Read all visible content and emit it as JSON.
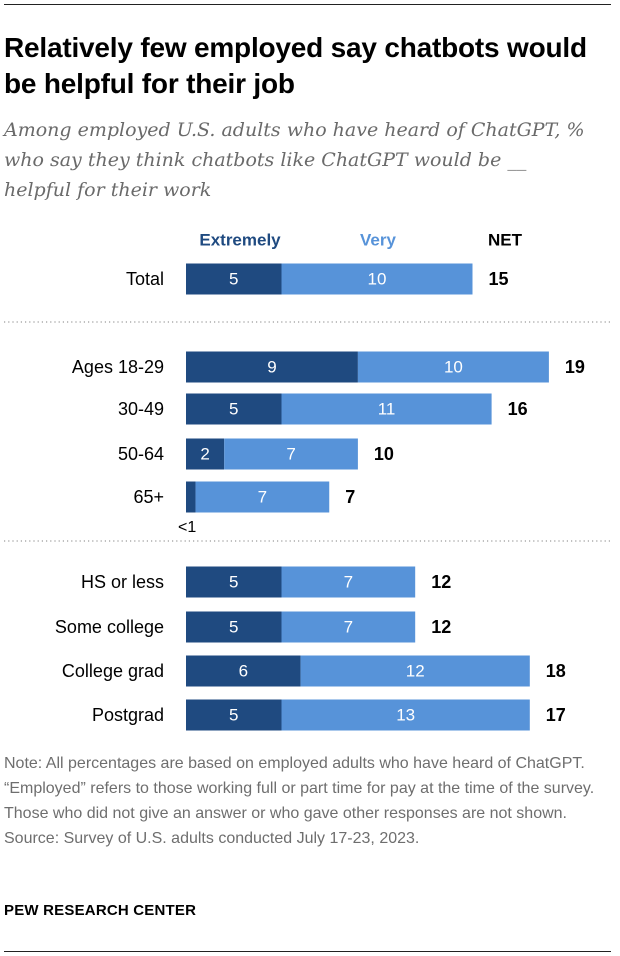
{
  "header": {
    "title": "Relatively few employed say chatbots would be helpful for their job",
    "subtitle": "Among employed U.S. adults who have heard of ChatGPT, % who say they think chatbots like ChatGPT would be __ helpful for their work"
  },
  "colors": {
    "extremely": "#1f4a80",
    "very": "#5793d9",
    "net": "#000000",
    "label": "#000000",
    "bar_text": "#ffffff",
    "divider": "#9a9a9a"
  },
  "chart_data": {
    "type": "bar",
    "orientation": "horizontal",
    "stacked": true,
    "legend": [
      "Extremely",
      "Very",
      "NET"
    ],
    "categories": [
      "Total",
      "Ages 18-29",
      "30-49",
      "50-64",
      "65+",
      "HS or less",
      "Some college",
      "College grad",
      "Postgrad"
    ],
    "series": [
      {
        "name": "Extremely",
        "values": [
          5,
          9,
          5,
          2,
          0.5,
          5,
          5,
          6,
          5
        ],
        "labels": [
          "5",
          "9",
          "5",
          "2",
          "",
          "5",
          "5",
          "6",
          "5"
        ]
      },
      {
        "name": "Very",
        "values": [
          10,
          10,
          11,
          7,
          7,
          7,
          7,
          12,
          13
        ],
        "labels": [
          "10",
          "10",
          "11",
          "7",
          "7",
          "7",
          "7",
          "12",
          "13"
        ]
      }
    ],
    "net": [
      "15",
      "19",
      "16",
      "10",
      "7",
      "12",
      "12",
      "18",
      "17"
    ],
    "annotations": [
      {
        "category": "65+",
        "text": "<1"
      }
    ],
    "groups": [
      [
        "Total"
      ],
      [
        "Ages 18-29",
        "30-49",
        "50-64",
        "65+"
      ],
      [
        "HS or less",
        "Some college",
        "College grad",
        "Postgrad"
      ]
    ],
    "xlim": [
      0,
      19
    ]
  },
  "footer": {
    "note": "Note: All percentages are based on employed adults who have heard of ChatGPT. “Employed” refers to those working full or part time for pay at the time of the survey. Those who did not give an answer or who gave other responses are not shown.",
    "source": "Source: Survey of U.S. adults conducted July 17-23, 2023.",
    "brand": "PEW RESEARCH CENTER"
  }
}
